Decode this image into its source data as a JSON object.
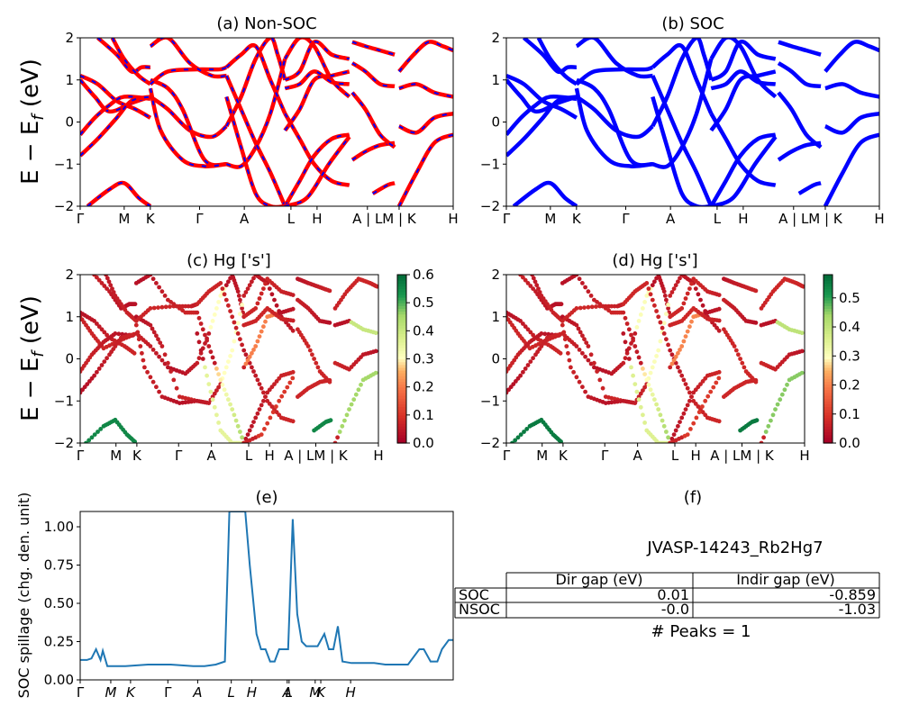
{
  "kpath_labels": [
    "Γ",
    "M",
    "K",
    "Γ",
    "A",
    "L",
    "H",
    "A | L",
    "M | K",
    "H"
  ],
  "kpath_labels_cd": [
    "Γ",
    "M",
    "K",
    "Γ",
    "A",
    "L",
    "H",
    "A | LM | K",
    "H"
  ],
  "kpath_labels_e": [
    "Γ",
    "M",
    "K",
    "Γ",
    "A",
    "L",
    "H",
    "A",
    "L",
    "M",
    "K",
    "H"
  ],
  "ylabel": "E − E_f (eV)",
  "colorbar_c": {
    "ticks": [
      "0.0",
      "0.1",
      "0.2",
      "0.3",
      "0.4",
      "0.5",
      "0.6"
    ],
    "max": 0.6
  },
  "colorbar_d": {
    "ticks": [
      "0.0",
      "0.1",
      "0.2",
      "0.3",
      "0.4",
      "0.5"
    ],
    "max": 0.58
  },
  "colors": {
    "nonsoc": "#ff0000",
    "nonsoc_dash": "#0000ff",
    "soc": "#0000ff",
    "spill": "#1f77b4"
  },
  "chart_data": [
    {
      "type": "line",
      "title": "(a) Non-SOC",
      "xlabel": "",
      "ylabel": "E − E_f (eV)",
      "ylim": [
        -2,
        2
      ],
      "yticks": [
        "2",
        "1",
        "0",
        "−1",
        "−2"
      ],
      "series": [
        {
          "x": [
            0,
            0.12,
            0.25,
            0.38,
            0.48
          ],
          "values": [
            1.1,
            0.9,
            0.5,
            0.3,
            0.1
          ]
        },
        {
          "x": [
            0,
            0.1,
            0.2,
            0.35,
            0.48
          ],
          "values": [
            1.0,
            0.6,
            0.25,
            0.45,
            0.6
          ]
        },
        {
          "x": [
            0,
            0.1,
            0.2,
            0.3,
            0.48
          ],
          "values": [
            -0.3,
            0.1,
            0.4,
            0.6,
            0.55
          ]
        },
        {
          "x": [
            0,
            0.12,
            0.25,
            0.35,
            0.48
          ],
          "values": [
            -0.8,
            -0.4,
            0.1,
            0.5,
            0.6
          ]
        },
        {
          "x": [
            0.05,
            0.2,
            0.3,
            0.4,
            0.48
          ],
          "values": [
            -2.0,
            -1.6,
            -1.45,
            -1.8,
            -2.0
          ]
        },
        {
          "x": [
            0.12,
            0.25,
            0.35,
            0.42,
            0.48
          ],
          "values": [
            2.0,
            1.6,
            1.2,
            1.3,
            1.3
          ]
        },
        {
          "x": [
            0.22,
            0.3,
            0.4,
            0.48
          ],
          "values": [
            2.0,
            1.5,
            1.1,
            0.9
          ]
        },
        {
          "x": [
            0.48,
            0.6,
            0.75,
            0.9,
            1.0
          ],
          "values": [
            0.6,
            0.3,
            -0.2,
            -0.35,
            -0.1
          ]
        },
        {
          "x": [
            0.48,
            0.6,
            0.7,
            0.85,
            1.0
          ],
          "values": [
            1.0,
            0.8,
            0.3,
            -0.9,
            -1.0
          ]
        },
        {
          "x": [
            0.48,
            0.6,
            0.8,
            0.95,
            1.0
          ],
          "values": [
            0.9,
            1.2,
            1.25,
            1.25,
            1.3
          ]
        },
        {
          "x": [
            0.48,
            0.55,
            0.7,
            0.85,
            1.0
          ],
          "values": [
            0.8,
            -0.2,
            -0.9,
            -1.05,
            -1.0
          ]
        },
        {
          "x": [
            0.48,
            0.6,
            0.75,
            0.9,
            1.0
          ],
          "values": [
            1.8,
            2.0,
            1.4,
            1.1,
            1.1
          ]
        },
        {
          "x": [
            1.0,
            1.1,
            1.2,
            1.3,
            1.35,
            1.4
          ],
          "values": [
            -0.1,
            0.6,
            1.5,
            2.0,
            1.6,
            1.0
          ]
        },
        {
          "x": [
            1.0,
            1.1,
            1.2,
            1.3,
            1.4
          ],
          "values": [
            -1.0,
            -1.05,
            -0.6,
            0.2,
            1.5
          ]
        },
        {
          "x": [
            1.0,
            1.1,
            1.2,
            1.3,
            1.4
          ],
          "values": [
            1.3,
            1.6,
            1.8,
            1.0,
            0.2
          ]
        },
        {
          "x": [
            1.0,
            1.1,
            1.2,
            1.3,
            1.4
          ],
          "values": [
            1.1,
            0.3,
            -0.5,
            -1.2,
            -2.0
          ]
        },
        {
          "x": [
            1.0,
            1.1,
            1.2,
            1.3,
            1.4
          ],
          "values": [
            0.6,
            -0.6,
            -1.7,
            -2.0,
            -2.0
          ]
        },
        {
          "x": [
            1.4,
            1.5,
            1.6,
            1.72,
            1.84
          ],
          "values": [
            1.5,
            2.0,
            1.8,
            1.0,
            0.6
          ]
        },
        {
          "x": [
            1.4,
            1.5,
            1.6,
            1.72,
            1.84
          ],
          "values": [
            0.2,
            -0.4,
            -1.0,
            -1.4,
            -1.5
          ]
        },
        {
          "x": [
            1.4,
            1.5,
            1.6,
            1.72,
            1.84
          ],
          "values": [
            1.0,
            1.2,
            1.9,
            1.6,
            1.5
          ]
        },
        {
          "x": [
            1.4,
            1.5,
            1.6,
            1.72,
            1.84
          ],
          "values": [
            -0.2,
            0.3,
            1.0,
            1.1,
            1.2
          ]
        },
        {
          "x": [
            1.4,
            1.5,
            1.6,
            1.72,
            1.84
          ],
          "values": [
            -2.0,
            -1.4,
            -0.8,
            -0.4,
            -0.3
          ]
        },
        {
          "x": [
            1.4,
            1.5,
            1.6,
            1.72,
            1.84
          ],
          "values": [
            0.8,
            0.9,
            1.2,
            0.95,
            0.9
          ]
        },
        {
          "x": [
            1.4,
            1.55,
            1.7,
            1.84
          ],
          "values": [
            -2.0,
            -1.8,
            -1.0,
            -0.35
          ]
        },
        {
          "x": [
            1.86,
            1.95,
            2.05,
            2.15
          ],
          "values": [
            -0.9,
            -0.7,
            -0.55,
            -0.5
          ]
        },
        {
          "x": [
            1.86,
            1.95,
            2.05,
            2.15
          ],
          "values": [
            1.4,
            1.2,
            0.9,
            0.85
          ]
        },
        {
          "x": [
            1.86,
            1.95,
            2.05,
            2.15
          ],
          "values": [
            1.9,
            1.8,
            1.7,
            1.6
          ]
        },
        {
          "x": [
            1.86,
            1.95,
            2.05,
            2.15
          ],
          "values": [
            0.7,
            0.3,
            -0.3,
            -0.6
          ]
        },
        {
          "x": [
            2.0,
            2.1,
            2.15
          ],
          "values": [
            -1.7,
            -1.5,
            -1.45
          ]
        },
        {
          "x": [
            2.18,
            2.28,
            2.38,
            2.48,
            2.55
          ],
          "values": [
            1.2,
            1.6,
            1.9,
            1.8,
            1.7
          ]
        },
        {
          "x": [
            2.18,
            2.3,
            2.42,
            2.55
          ],
          "values": [
            -0.1,
            -0.25,
            0.1,
            0.2
          ]
        },
        {
          "x": [
            2.18,
            2.3,
            2.42,
            2.55
          ],
          "values": [
            0.8,
            0.9,
            0.7,
            0.6
          ]
        },
        {
          "x": [
            2.18,
            2.3,
            2.42,
            2.55
          ],
          "values": [
            -2.0,
            -1.2,
            -0.5,
            -0.3
          ]
        }
      ]
    },
    {
      "type": "line",
      "title": "(b) SOC",
      "xlabel": "",
      "ylabel": "",
      "ylim": [
        -2,
        2
      ],
      "yticks": [
        "2",
        "1",
        "0",
        "−1",
        "−2"
      ]
    },
    {
      "type": "scatter",
      "title": "(c)  Hg ['s']",
      "ylim": [
        -2,
        2
      ],
      "yticks": [
        "2",
        "1",
        "0",
        "−1",
        "−2"
      ],
      "color_range": [
        0,
        0.6
      ]
    },
    {
      "type": "scatter",
      "title": "(d) Hg ['s']",
      "ylim": [
        -2,
        2
      ],
      "yticks": [
        "2",
        "1",
        "0",
        "−1",
        "−2"
      ],
      "color_range": [
        0,
        0.58
      ]
    },
    {
      "type": "line",
      "title": "(e)",
      "xlabel": "",
      "ylabel": "SOC spillage (chg. den. unit)",
      "ylim": [
        0,
        1.1
      ],
      "yticks": [
        "1.00",
        "0.75",
        "0.50",
        "0.25",
        "0.00"
      ],
      "x": [
        0,
        0.03,
        0.05,
        0.07,
        0.09,
        0.1,
        0.12,
        0.15,
        0.2,
        0.3,
        0.4,
        0.5,
        0.55,
        0.6,
        0.64,
        0.66,
        0.68,
        0.7,
        0.73,
        0.75,
        0.78,
        0.8,
        0.82,
        0.84,
        0.86,
        0.88,
        0.9,
        0.92,
        0.94,
        0.96,
        0.98,
        1.0,
        1.02,
        1.05,
        1.08,
        1.1,
        1.12,
        1.14,
        1.16,
        1.2,
        1.25,
        1.3,
        1.35,
        1.4,
        1.45,
        1.5,
        1.52,
        1.55,
        1.58,
        1.6,
        1.63,
        1.65
      ],
      "values": [
        0.13,
        0.13,
        0.14,
        0.2,
        0.13,
        0.19,
        0.09,
        0.09,
        0.09,
        0.1,
        0.1,
        0.09,
        0.09,
        0.1,
        0.12,
        1.1,
        1.1,
        1.1,
        1.1,
        0.75,
        0.3,
        0.2,
        0.2,
        0.12,
        0.12,
        0.2,
        0.2,
        0.2,
        1.05,
        0.43,
        0.25,
        0.22,
        0.22,
        0.22,
        0.3,
        0.2,
        0.2,
        0.35,
        0.12,
        0.11,
        0.11,
        0.11,
        0.1,
        0.1,
        0.1,
        0.2,
        0.2,
        0.12,
        0.12,
        0.2,
        0.26,
        0.26
      ]
    }
  ],
  "panel_f": {
    "title": "(f)",
    "material": "JVASP-14243_Rb2Hg7",
    "table": {
      "headers": [
        "",
        "Dir gap (eV)",
        "Indir gap (eV)"
      ],
      "rows": [
        [
          "SOC",
          "0.01",
          "-0.859"
        ],
        [
          "NSOC",
          "-0.0",
          "-1.03"
        ]
      ]
    },
    "peaks": "# Peaks = 1"
  }
}
